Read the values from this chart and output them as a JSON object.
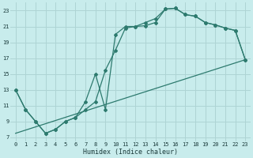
{
  "xlabel": "Humidex (Indice chaleur)",
  "background_color": "#c8ecec",
  "grid_color": "#aed4d4",
  "line_color": "#2d7a6e",
  "xlim": [
    -0.5,
    23.5
  ],
  "ylim": [
    6.5,
    24.0
  ],
  "yticks": [
    7,
    9,
    11,
    13,
    15,
    17,
    19,
    21,
    23
  ],
  "xticks": [
    0,
    1,
    2,
    3,
    4,
    5,
    6,
    7,
    8,
    9,
    10,
    11,
    12,
    13,
    14,
    15,
    16,
    17,
    18,
    19,
    20,
    21,
    22,
    23
  ],
  "line1_x": [
    0,
    1,
    2,
    3,
    4,
    5,
    6,
    7,
    8,
    9,
    10,
    11,
    12,
    13,
    14,
    15,
    16,
    17,
    18,
    19,
    20,
    21,
    22,
    23
  ],
  "line1_y": [
    13,
    10.5,
    9.0,
    7.5,
    8.0,
    9.0,
    9.5,
    10.5,
    11.5,
    15.5,
    18.0,
    20.8,
    21.0,
    21.1,
    21.5,
    23.2,
    23.3,
    22.5,
    22.3,
    21.5,
    21.2,
    20.8,
    20.5,
    16.8
  ],
  "line2_x": [
    0,
    1,
    2,
    3,
    4,
    5,
    6,
    7,
    8,
    9,
    10,
    11,
    12,
    13,
    14,
    15,
    16,
    17,
    18,
    19,
    20,
    21,
    22,
    23
  ],
  "line2_y": [
    13,
    10.5,
    9.0,
    7.5,
    8.0,
    9.0,
    9.5,
    11.5,
    15.0,
    10.5,
    20.0,
    21.0,
    21.0,
    21.5,
    22.0,
    23.2,
    23.3,
    22.5,
    22.3,
    21.5,
    21.2,
    20.8,
    20.5,
    16.8
  ],
  "line3_x": [
    0,
    23
  ],
  "line3_y": [
    7.5,
    16.8
  ],
  "xlabel_fontsize": 6.0,
  "tick_fontsize": 5.0
}
